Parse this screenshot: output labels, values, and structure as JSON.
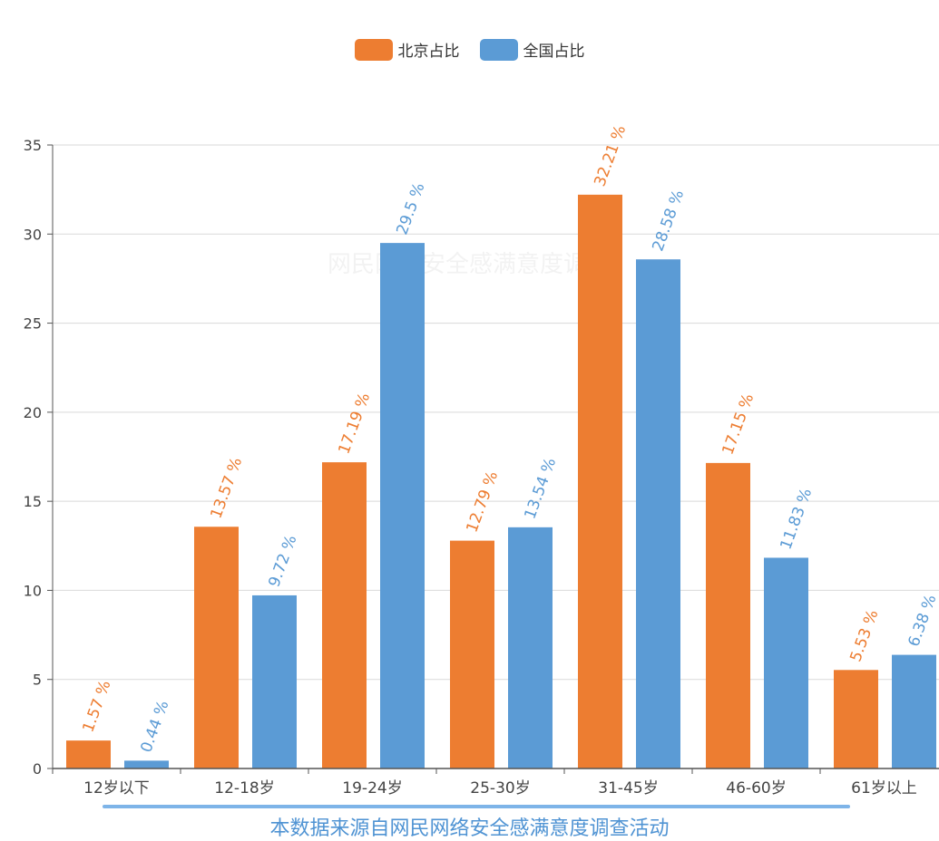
{
  "chart_data": {
    "type": "bar",
    "categories": [
      "12岁以下",
      "12-18岁",
      "19-24岁",
      "25-30岁",
      "31-45岁",
      "46-60岁",
      "61岁以上"
    ],
    "series": [
      {
        "name": "北京占比",
        "color": "#ed7d31",
        "values": [
          1.57,
          13.57,
          17.19,
          12.79,
          32.21,
          17.15,
          5.53
        ],
        "labels": [
          "1.57 %",
          "13.57 %",
          "17.19 %",
          "12.79 %",
          "32.21 %",
          "17.15 %",
          "5.53 %"
        ]
      },
      {
        "name": "全国占比",
        "color": "#5b9bd5",
        "values": [
          0.44,
          9.72,
          29.5,
          13.54,
          28.58,
          11.83,
          6.38
        ],
        "labels": [
          "0.44 %",
          "9.72 %",
          "29.5 %",
          "13.54 %",
          "28.58 %",
          "11.83 %",
          "6.38 %"
        ]
      }
    ],
    "y_ticks": [
      "0",
      "5",
      "10",
      "15",
      "20",
      "25",
      "30",
      "35"
    ],
    "ylim": [
      0,
      35
    ],
    "grid": true,
    "legend_position": "top-center",
    "title": "",
    "xlabel": "",
    "ylabel": ""
  },
  "footer": {
    "source_text": "本数据来源自网民网络安全感满意度调查活动",
    "line_color": "#7eb4e8",
    "text_color": "#4f93d3"
  },
  "watermark": {
    "text": "网民网络安全感满意度调查"
  }
}
